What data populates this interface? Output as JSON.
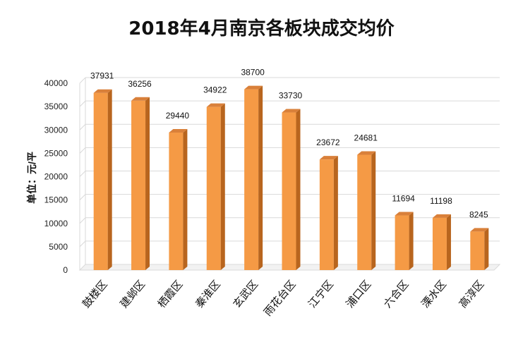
{
  "chart_data": {
    "type": "bar",
    "title": "2018年4月南京各板块成交均价",
    "xlabel": "",
    "ylabel": "单位：元/平",
    "categories": [
      "鼓楼区",
      "建邺区",
      "栖霞区",
      "秦淮区",
      "玄武区",
      "雨花台区",
      "江宁区",
      "浦口区",
      "六合区",
      "溧水区",
      "高淳区"
    ],
    "values": [
      37931,
      36256,
      29440,
      34922,
      38700,
      33730,
      23672,
      24681,
      11694,
      11198,
      8245
    ],
    "ylim": [
      0,
      40000
    ],
    "yticks": [
      0,
      5000,
      10000,
      15000,
      20000,
      25000,
      30000,
      35000,
      40000
    ],
    "grid": true,
    "style": "3d-column",
    "colors": {
      "bar_front": "#F59A45",
      "bar_side": "#B8651E",
      "bar_top": "#D9803A",
      "grid": "#D9D9D9"
    }
  }
}
